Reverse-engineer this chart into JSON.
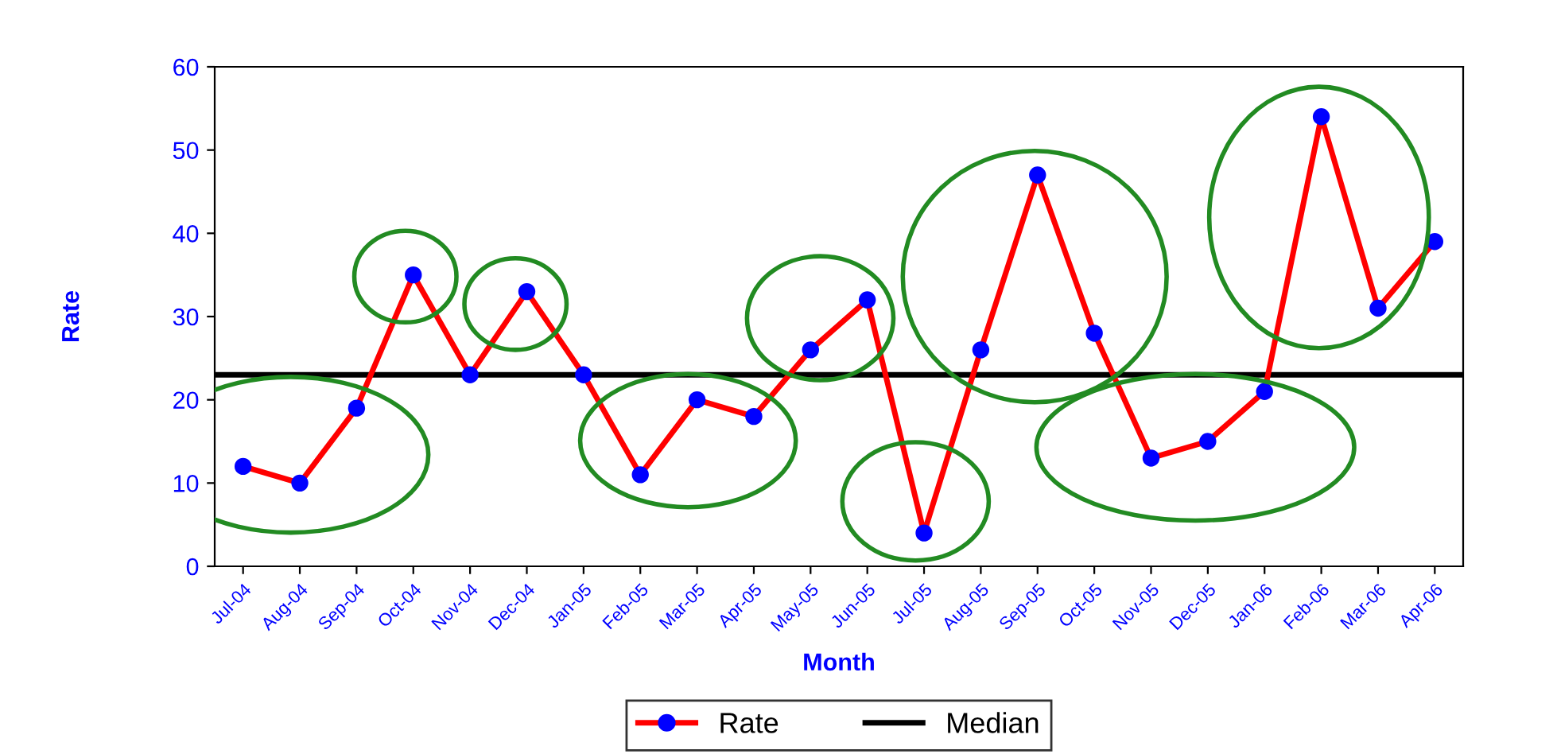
{
  "chart_data": {
    "type": "line",
    "xlabel": "Month",
    "ylabel": "Rate",
    "categories": [
      "Jul-04",
      "Aug-04",
      "Sep-04",
      "Oct-04",
      "Nov-04",
      "Dec-04",
      "Jan-05",
      "Feb-05",
      "Mar-05",
      "Apr-05",
      "May-05",
      "Jun-05",
      "Jul-05",
      "Aug-05",
      "Sep-05",
      "Oct-05",
      "Nov-05",
      "Dec-05",
      "Jan-06",
      "Feb-06",
      "Mar-06",
      "Apr-06"
    ],
    "series": [
      {
        "name": "Rate",
        "color": "#ff0000",
        "colors": [
          "#0000ff",
          "#0000ff",
          "#0000ff",
          "#0000ff",
          "#0000ff",
          "#0000ff",
          "#0000ff",
          "#0000ff",
          "#0000ff",
          "#0000ff",
          "#0000ff",
          "#0000ff",
          "#0000ff",
          "#0000ff",
          "#0000ff",
          "#0000ff",
          "#0000ff",
          "#0000ff",
          "#0000ff",
          "#0000ff",
          "#0000ff",
          "#0000ff"
        ],
        "values": [
          12,
          10,
          19,
          35,
          23,
          33,
          23,
          11,
          20,
          18,
          26,
          32,
          4,
          26,
          47,
          28,
          13,
          15,
          21,
          54,
          31,
          39
        ]
      }
    ],
    "ref_lines": [
      {
        "axis": "y",
        "value": 23,
        "label": "Median",
        "color": "#000000"
      }
    ],
    "ylim": [
      0,
      60
    ],
    "yticks": [
      0,
      10,
      20,
      30,
      40,
      50,
      60
    ],
    "grid": false,
    "legend": "bottom",
    "marker": "circle",
    "line_style": "solid"
  }
}
